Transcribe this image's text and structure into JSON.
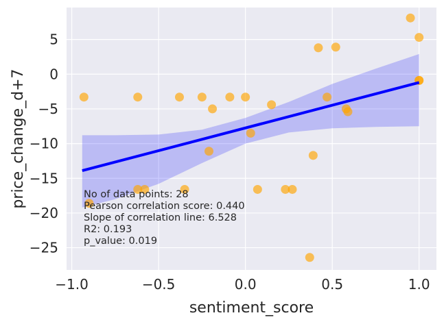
{
  "chart_data": {
    "type": "scatter",
    "title": "",
    "xlabel": "sentiment_score",
    "ylabel": "price_change_d+7",
    "xlim": [
      -1.03,
      1.1
    ],
    "ylim": [
      -28.2,
      9.6
    ],
    "xticks": [
      -1.0,
      -0.5,
      0.0,
      0.5,
      1.0
    ],
    "xtick_labels": [
      "−1.0",
      "−0.5",
      "0.0",
      "0.5",
      "1.0"
    ],
    "yticks": [
      5,
      0,
      -5,
      -10,
      -15,
      -20,
      -25
    ],
    "ytick_labels": [
      "5",
      "0",
      "−5",
      "−10",
      "−15",
      "−20",
      "−25"
    ],
    "grid": true,
    "background": "#eaeaf2",
    "point_color": "#ffa500",
    "point_alpha": 0.65,
    "line_color": "#0000ff",
    "ci_color": "#0000ff",
    "ci_alpha": 0.2,
    "points": [
      {
        "x": -0.93,
        "y": -3.3
      },
      {
        "x": -0.9,
        "y": -18.6
      },
      {
        "x": -0.62,
        "y": -3.3
      },
      {
        "x": -0.62,
        "y": -16.6
      },
      {
        "x": -0.58,
        "y": -16.6
      },
      {
        "x": -0.38,
        "y": -3.3
      },
      {
        "x": -0.35,
        "y": -16.6
      },
      {
        "x": -0.25,
        "y": -3.3
      },
      {
        "x": -0.21,
        "y": -11.1
      },
      {
        "x": -0.19,
        "y": -5.0
      },
      {
        "x": -0.09,
        "y": -3.3
      },
      {
        "x": 0.0,
        "y": -3.3
      },
      {
        "x": 0.03,
        "y": -8.5
      },
      {
        "x": 0.07,
        "y": -16.6
      },
      {
        "x": 0.15,
        "y": -4.4
      },
      {
        "x": 0.23,
        "y": -16.6
      },
      {
        "x": 0.27,
        "y": -16.6
      },
      {
        "x": 0.37,
        "y": -26.4
      },
      {
        "x": 0.39,
        "y": -11.7
      },
      {
        "x": 0.42,
        "y": 3.8
      },
      {
        "x": 0.47,
        "y": -3.3
      },
      {
        "x": 0.52,
        "y": 3.9
      },
      {
        "x": 0.58,
        "y": -5.0
      },
      {
        "x": 0.59,
        "y": -5.4
      },
      {
        "x": 0.95,
        "y": 8.1
      },
      {
        "x": 1.0,
        "y": 5.3
      },
      {
        "x": 1.0,
        "y": -0.9
      },
      {
        "x": 1.0,
        "y": -0.9
      }
    ],
    "regression_line": {
      "x": [
        -0.94,
        1.0
      ],
      "y": [
        -13.9,
        -1.2
      ]
    },
    "confidence_band": {
      "x": [
        -0.94,
        -0.75,
        -0.5,
        -0.25,
        0.0,
        0.25,
        0.5,
        0.75,
        1.0
      ],
      "upper": [
        -8.8,
        -8.8,
        -8.7,
        -8.0,
        -6.3,
        -4.0,
        -1.4,
        0.8,
        2.9
      ],
      "lower": [
        -19.2,
        -18.0,
        -15.8,
        -12.8,
        -10.0,
        -8.4,
        -7.8,
        -7.6,
        -7.5
      ]
    },
    "annotations": [
      "No of data points: 28",
      "Pearson correlation score: 0.440",
      "Slope of correlation line: 6.528",
      "R2: 0.193",
      "p_value: 0.019"
    ]
  }
}
